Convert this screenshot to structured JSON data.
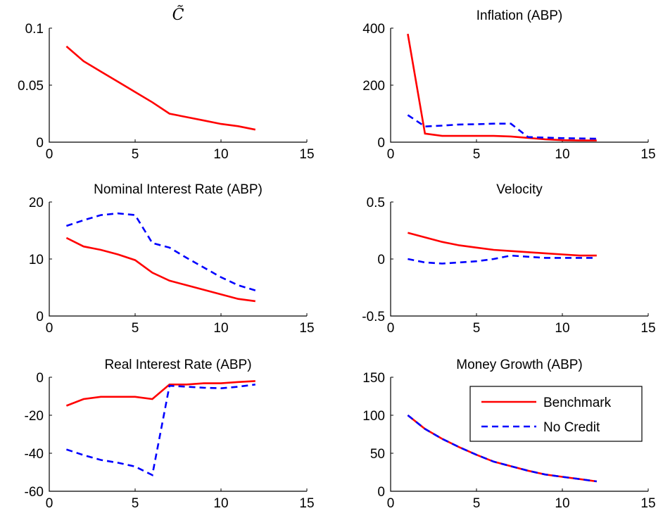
{
  "chart_data": [
    {
      "type": "line",
      "title": "C̃",
      "xlim": [
        0,
        15
      ],
      "ylim": [
        0,
        0.1
      ],
      "xticks": [
        0,
        5,
        10,
        15
      ],
      "yticks": [
        0,
        0.05,
        0.1
      ],
      "xtick_labels": [
        "0",
        "5",
        "10",
        "15"
      ],
      "ytick_labels": [
        "0",
        "0.05",
        "0.1"
      ],
      "series": [
        {
          "color": "#ff0000",
          "dash": "solid",
          "x": [
            1,
            2,
            3,
            4,
            5,
            6,
            7,
            8,
            9,
            10,
            11,
            12
          ],
          "y": [
            0.084,
            0.071,
            0.062,
            0.053,
            0.044,
            0.035,
            0.025,
            0.022,
            0.019,
            0.016,
            0.014,
            0.011
          ]
        }
      ]
    },
    {
      "type": "line",
      "title": "Inflation (ABP)",
      "xlim": [
        0,
        15
      ],
      "ylim": [
        0,
        400
      ],
      "xticks": [
        0,
        5,
        10,
        15
      ],
      "yticks": [
        0,
        200,
        400
      ],
      "xtick_labels": [
        "0",
        "5",
        "10",
        "15"
      ],
      "ytick_labels": [
        "0",
        "200",
        "400"
      ],
      "series": [
        {
          "color": "#ff0000",
          "dash": "solid",
          "x": [
            1,
            2,
            3,
            4,
            5,
            6,
            7,
            8,
            9,
            10,
            11,
            12
          ],
          "y": [
            380,
            30,
            22,
            22,
            22,
            22,
            20,
            15,
            10,
            7,
            6,
            6
          ]
        },
        {
          "color": "#0000ff",
          "dash": "dashed",
          "x": [
            1,
            2,
            3,
            4,
            5,
            6,
            7,
            8,
            9,
            10,
            11,
            12
          ],
          "y": [
            95,
            55,
            58,
            62,
            63,
            65,
            65,
            18,
            16,
            14,
            13,
            12
          ]
        }
      ]
    },
    {
      "type": "line",
      "title": "Nominal Interest Rate (ABP)",
      "xlim": [
        0,
        15
      ],
      "ylim": [
        0,
        20
      ],
      "xticks": [
        0,
        5,
        10,
        15
      ],
      "yticks": [
        0,
        10,
        20
      ],
      "xtick_labels": [
        "0",
        "5",
        "10",
        "15"
      ],
      "ytick_labels": [
        "0",
        "10",
        "20"
      ],
      "series": [
        {
          "color": "#ff0000",
          "dash": "solid",
          "x": [
            1,
            2,
            3,
            4,
            5,
            6,
            7,
            8,
            9,
            10,
            11,
            12
          ],
          "y": [
            13.7,
            12.2,
            11.6,
            10.8,
            9.8,
            7.6,
            6.2,
            5.4,
            4.6,
            3.8,
            3.0,
            2.6
          ]
        },
        {
          "color": "#0000ff",
          "dash": "dashed",
          "x": [
            1,
            2,
            3,
            4,
            5,
            6,
            7,
            8,
            9,
            10,
            11,
            12
          ],
          "y": [
            15.8,
            16.8,
            17.7,
            18.0,
            17.7,
            12.8,
            12.0,
            10.2,
            8.5,
            6.8,
            5.4,
            4.5
          ]
        }
      ]
    },
    {
      "type": "line",
      "title": "Velocity",
      "xlim": [
        0,
        15
      ],
      "ylim": [
        -0.5,
        0.5
      ],
      "xticks": [
        0,
        5,
        10,
        15
      ],
      "yticks": [
        -0.5,
        0,
        0.5
      ],
      "xtick_labels": [
        "0",
        "5",
        "10",
        "15"
      ],
      "ytick_labels": [
        "-0.5",
        "0",
        "0.5"
      ],
      "series": [
        {
          "color": "#ff0000",
          "dash": "solid",
          "x": [
            1,
            2,
            3,
            4,
            5,
            6,
            7,
            8,
            9,
            10,
            11,
            12
          ],
          "y": [
            0.23,
            0.19,
            0.15,
            0.12,
            0.1,
            0.08,
            0.07,
            0.06,
            0.05,
            0.04,
            0.03,
            0.03
          ]
        },
        {
          "color": "#0000ff",
          "dash": "dashed",
          "x": [
            1,
            2,
            3,
            4,
            5,
            6,
            7,
            8,
            9,
            10,
            11,
            12
          ],
          "y": [
            0.0,
            -0.03,
            -0.04,
            -0.03,
            -0.02,
            0.0,
            0.03,
            0.02,
            0.01,
            0.01,
            0.01,
            0.01
          ]
        }
      ]
    },
    {
      "type": "line",
      "title": "Real Interest Rate (ABP)",
      "xlim": [
        0,
        15
      ],
      "ylim": [
        -60,
        0
      ],
      "xticks": [
        0,
        5,
        10,
        15
      ],
      "yticks": [
        -60,
        -40,
        -20,
        0
      ],
      "xtick_labels": [
        "0",
        "5",
        "10",
        "15"
      ],
      "ytick_labels": [
        "-60",
        "-40",
        "-20",
        "0"
      ],
      "series": [
        {
          "color": "#ff0000",
          "dash": "solid",
          "x": [
            1,
            2,
            3,
            4,
            5,
            6,
            7,
            8,
            9,
            10,
            11,
            12
          ],
          "y": [
            -15,
            -11.5,
            -10.3,
            -10.3,
            -10.3,
            -11.5,
            -3.8,
            -3.8,
            -3.2,
            -3.2,
            -2.5,
            -2.0
          ]
        },
        {
          "color": "#0000ff",
          "dash": "dashed",
          "x": [
            1,
            2,
            3,
            4,
            5,
            6,
            7,
            8,
            9,
            10,
            11,
            12
          ],
          "y": [
            -38,
            -41,
            -43.5,
            -45,
            -47,
            -51.5,
            -4.5,
            -5,
            -5.5,
            -5.8,
            -5,
            -3.8
          ]
        }
      ]
    },
    {
      "type": "line",
      "title": "Money Growth (ABP)",
      "xlim": [
        0,
        15
      ],
      "ylim": [
        0,
        150
      ],
      "xticks": [
        0,
        5,
        10,
        15
      ],
      "yticks": [
        0,
        50,
        100,
        150
      ],
      "xtick_labels": [
        "0",
        "5",
        "10",
        "15"
      ],
      "ytick_labels": [
        "0",
        "50",
        "100",
        "150"
      ],
      "legend": {
        "placement": "top-right",
        "labels": [
          "Benchmark",
          "No Credit"
        ]
      },
      "series": [
        {
          "name": "Benchmark",
          "color": "#ff0000",
          "dash": "solid",
          "x": [
            1,
            2,
            3,
            4,
            5,
            6,
            7,
            8,
            9,
            10,
            11,
            12
          ],
          "y": [
            100,
            82,
            69,
            58,
            48,
            39,
            33,
            27,
            22,
            19,
            16,
            13
          ]
        },
        {
          "name": "No Credit",
          "color": "#0000ff",
          "dash": "dashed",
          "x": [
            1,
            2,
            3,
            4,
            5,
            6,
            7,
            8,
            9,
            10,
            11,
            12
          ],
          "y": [
            100,
            82,
            69,
            58,
            48,
            39,
            33,
            27,
            22,
            19,
            16,
            13
          ]
        }
      ]
    }
  ]
}
